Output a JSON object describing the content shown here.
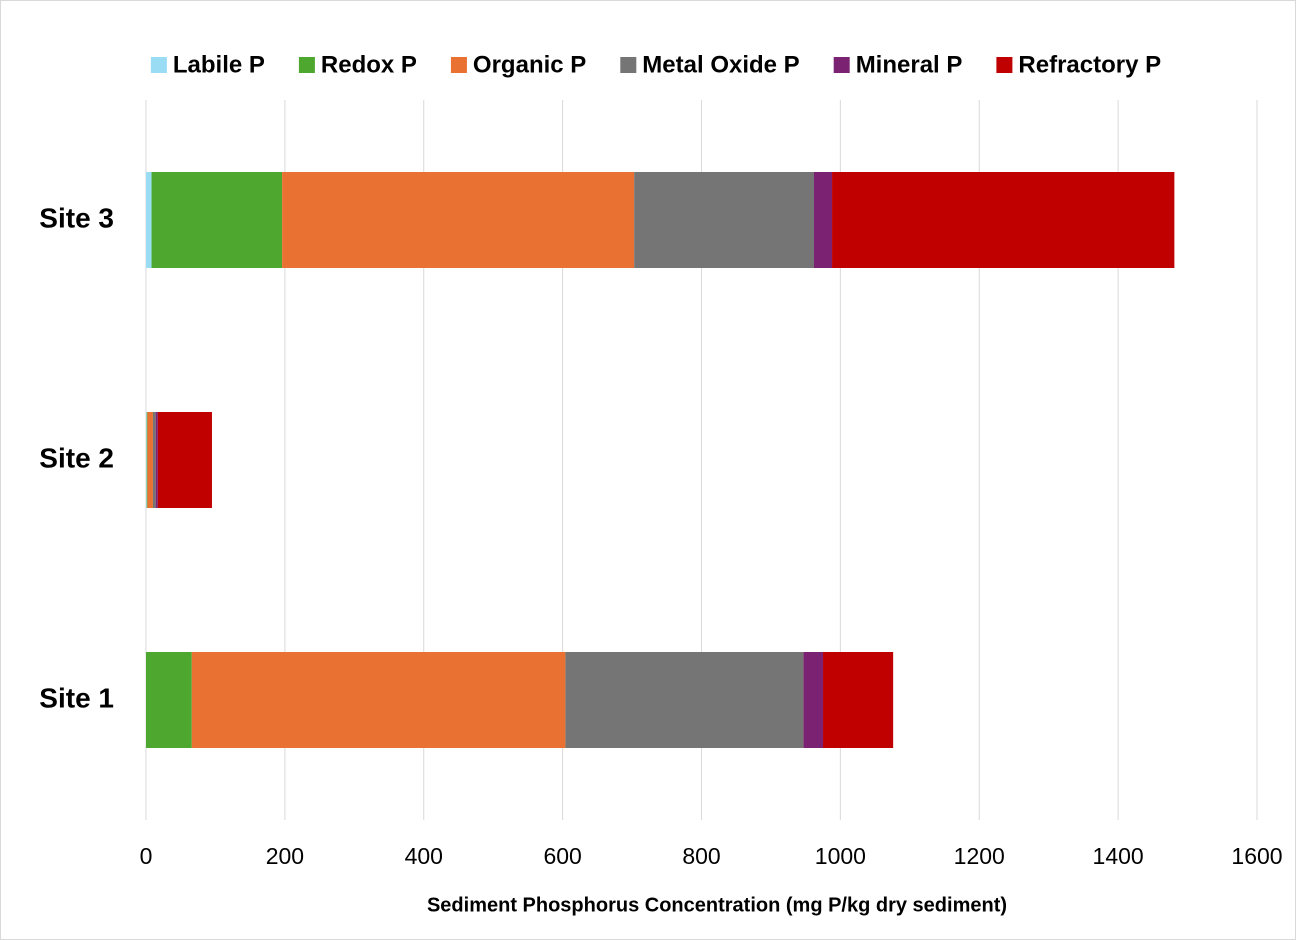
{
  "chart_data": {
    "type": "stacked_barh",
    "x_label": "Sediment Phosphorus Concentration (mg P/kg dry sediment)",
    "categories": [
      "Site 1",
      "Site 2",
      "Site 3"
    ],
    "series": [
      {
        "name": "Labile P",
        "color": "#99dcf4",
        "values": [
          0,
          1,
          8
        ]
      },
      {
        "name": "Redox P",
        "color": "#4ea72e",
        "values": [
          66,
          1,
          188
        ]
      },
      {
        "name": "Organic P",
        "color": "#e97132",
        "values": [
          538,
          8,
          507
        ]
      },
      {
        "name": "Metal Oxide P",
        "color": "#757575",
        "values": [
          343,
          4,
          259
        ]
      },
      {
        "name": "Mineral P",
        "color": "#7b2272",
        "values": [
          28,
          3,
          26
        ]
      },
      {
        "name": "Refractory P",
        "color": "#c00000",
        "values": [
          101,
          78,
          493
        ]
      }
    ],
    "xlim": [
      0,
      1600
    ],
    "xticks": [
      0,
      200,
      400,
      600,
      800,
      1000,
      1200,
      1400,
      1600
    ],
    "grid": true,
    "legend": "top"
  }
}
